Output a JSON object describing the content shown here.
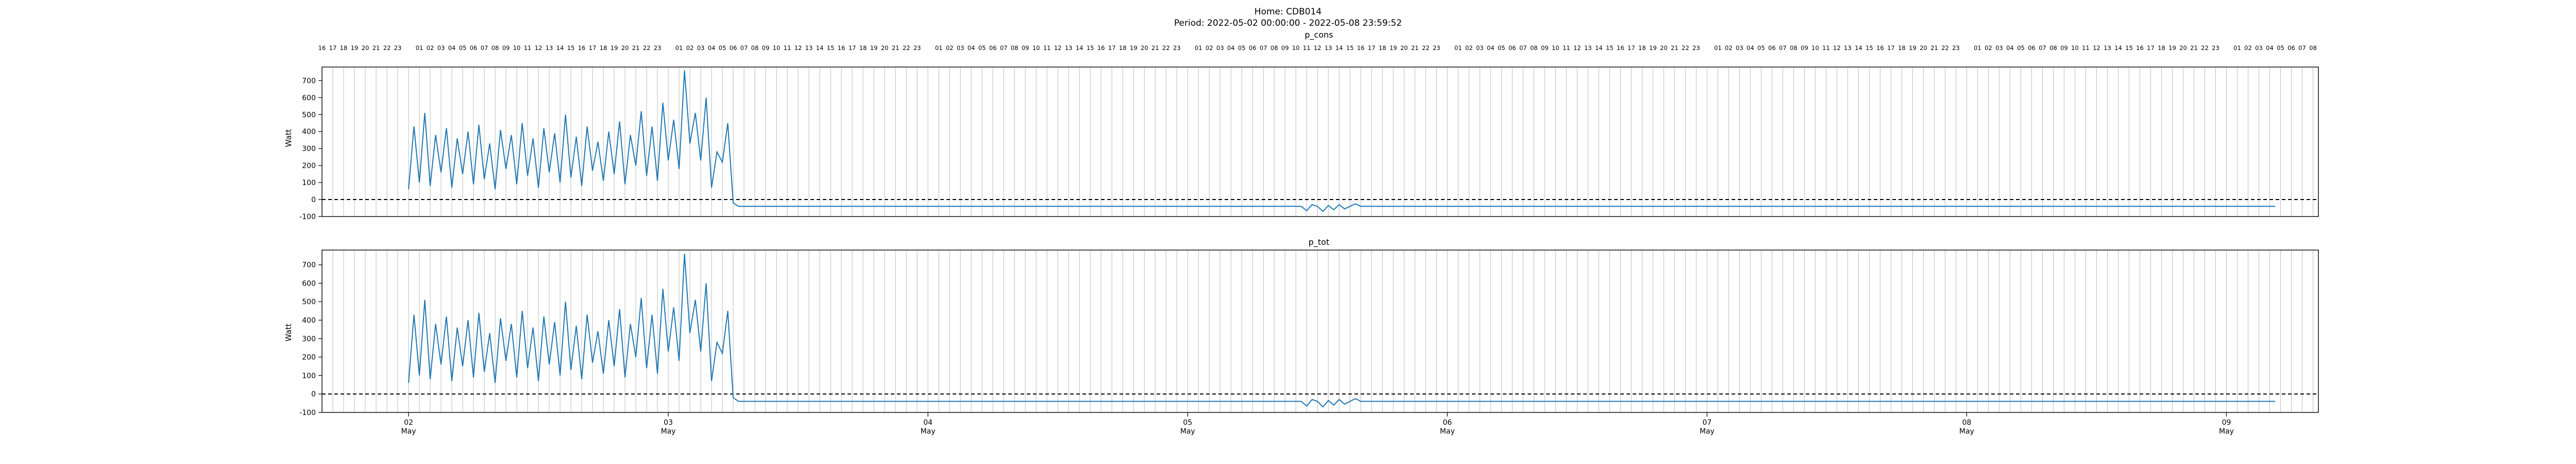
{
  "figure": {
    "title_line1": "Home: CDB014",
    "title_line2": "Period: 2022-05-02 00:00:00 - 2022-05-08 23:59:52"
  },
  "chart_data": [
    {
      "type": "line",
      "title": "p_cons",
      "ylabel": "Watt",
      "xlabel": "",
      "ylim": [
        -100,
        780
      ],
      "yticks": [
        -100,
        0,
        100,
        200,
        300,
        400,
        500,
        600,
        700
      ],
      "grid": "vertical hourly lines",
      "reference_line": {
        "y": 0,
        "style": "dashed",
        "color": "#000000"
      },
      "series": [
        {
          "color": "#1f77b4",
          "x_start": "2022-05-02 00:00",
          "x_step_hours": 0.5,
          "values": [
            60,
            430,
            100,
            510,
            80,
            380,
            160,
            420,
            70,
            360,
            150,
            400,
            90,
            440,
            120,
            330,
            60,
            410,
            180,
            380,
            90,
            450,
            140,
            360,
            70,
            420,
            160,
            390,
            100,
            500,
            130,
            370,
            80,
            430,
            170,
            340,
            110,
            400,
            150,
            460,
            90,
            380,
            200,
            520,
            140,
            430,
            110,
            570,
            230,
            470,
            180,
            760,
            330,
            510,
            230,
            600,
            70,
            280,
            220,
            450,
            -20,
            -40,
            -40,
            -40,
            -40,
            -40,
            -40,
            -40,
            -40,
            -40,
            -40,
            -40,
            -40,
            -40,
            -40,
            -40,
            -40,
            -40,
            -40,
            -40,
            -40,
            -40,
            -40,
            -40,
            -40,
            -40,
            -40,
            -40,
            -40,
            -40,
            -40,
            -40,
            -40,
            -40,
            -40,
            -40,
            -40,
            -40,
            -40,
            -40,
            -40,
            -40,
            -40,
            -40,
            -40,
            -40,
            -40,
            -40,
            -40,
            -40,
            -40,
            -40,
            -40,
            -40,
            -40,
            -40,
            -40,
            -40,
            -40,
            -40,
            -40,
            -40,
            -40,
            -40,
            -40,
            -40,
            -40,
            -40,
            -40,
            -40,
            -40,
            -40,
            -40,
            -40,
            -40,
            -40,
            -40,
            -40,
            -40,
            -40,
            -40,
            -40,
            -40,
            -40,
            -40,
            -40,
            -40,
            -40,
            -40,
            -40,
            -40,
            -40,
            -40,
            -40,
            -40,
            -40,
            -40,
            -40,
            -40,
            -40,
            -40,
            -40,
            -40,
            -40,
            -40,
            -40,
            -65,
            -30,
            -40,
            -70,
            -35,
            -60,
            -30,
            -55,
            -40,
            -25,
            -40,
            -40,
            -40,
            -40,
            -40,
            -40,
            -40,
            -40,
            -40,
            -40,
            -40,
            -40,
            -40,
            -40,
            -40,
            -40,
            -40,
            -40,
            -40,
            -40,
            -40,
            -40,
            -40,
            -40,
            -40,
            -40,
            -40,
            -40,
            -40,
            -40,
            -40,
            -40,
            -40,
            -40,
            -40,
            -40,
            -40,
            -40,
            -40,
            -40,
            -40,
            -40,
            -40,
            -40,
            -40,
            -40,
            -40,
            -40,
            -40,
            -40,
            -40,
            -40,
            -40,
            -40,
            -40,
            -40,
            -40,
            -40,
            -40,
            -40,
            -40,
            -40,
            -40,
            -40,
            -40,
            -40,
            -40,
            -40,
            -40,
            -40,
            -40,
            -40,
            -40,
            -40,
            -40,
            -40,
            -40,
            -40,
            -40,
            -40,
            -40,
            -40,
            -40,
            -40,
            -40,
            -40,
            -40,
            -40,
            -40,
            -40,
            -40,
            -40,
            -40,
            -40,
            -40,
            -40,
            -40,
            -40,
            -40,
            -40,
            -40,
            -40,
            -40,
            -40,
            -40,
            -40,
            -40,
            -40,
            -40,
            -40,
            -40,
            -40,
            -40,
            -40,
            -40,
            -40,
            -40,
            -40,
            -40,
            -40,
            -40,
            -40,
            -40,
            -40,
            -40,
            -40,
            -40,
            -40,
            -40,
            -40,
            -40,
            -40,
            -40,
            -40,
            -40,
            -40,
            -40,
            -40,
            -40,
            -40,
            -40,
            -40,
            -40,
            -40,
            -40,
            -40,
            -40,
            -40,
            -40,
            -40,
            -40,
            -40,
            -40,
            -40,
            -40,
            -40,
            -40,
            -40,
            -40,
            -40,
            -40,
            -40,
            -40,
            -40,
            -40,
            -40,
            -40,
            -40,
            -40,
            -40
          ]
        }
      ]
    },
    {
      "type": "line",
      "title": "p_tot",
      "ylabel": "Watt",
      "xlabel": "",
      "ylim": [
        -100,
        780
      ],
      "yticks": [
        -100,
        0,
        100,
        200,
        300,
        400,
        500,
        600,
        700
      ],
      "grid": "vertical hourly lines",
      "reference_line": {
        "y": 0,
        "style": "dashed",
        "color": "#000000"
      },
      "series": [
        {
          "color": "#1f77b4",
          "x_start": "2022-05-02 00:00",
          "x_step_hours": 0.5,
          "values": [
            60,
            430,
            100,
            510,
            80,
            380,
            160,
            420,
            70,
            360,
            150,
            400,
            90,
            440,
            120,
            330,
            60,
            410,
            180,
            380,
            90,
            450,
            140,
            360,
            70,
            420,
            160,
            390,
            100,
            500,
            130,
            370,
            80,
            430,
            170,
            340,
            110,
            400,
            150,
            460,
            90,
            380,
            200,
            520,
            140,
            430,
            110,
            570,
            230,
            470,
            180,
            760,
            330,
            510,
            230,
            600,
            70,
            280,
            220,
            450,
            -20,
            -40,
            -40,
            -40,
            -40,
            -40,
            -40,
            -40,
            -40,
            -40,
            -40,
            -40,
            -40,
            -40,
            -40,
            -40,
            -40,
            -40,
            -40,
            -40,
            -40,
            -40,
            -40,
            -40,
            -40,
            -40,
            -40,
            -40,
            -40,
            -40,
            -40,
            -40,
            -40,
            -40,
            -40,
            -40,
            -40,
            -40,
            -40,
            -40,
            -40,
            -40,
            -40,
            -40,
            -40,
            -40,
            -40,
            -40,
            -40,
            -40,
            -40,
            -40,
            -40,
            -40,
            -40,
            -40,
            -40,
            -40,
            -40,
            -40,
            -40,
            -40,
            -40,
            -40,
            -40,
            -40,
            -40,
            -40,
            -40,
            -40,
            -40,
            -40,
            -40,
            -40,
            -40,
            -40,
            -40,
            -40,
            -40,
            -40,
            -40,
            -40,
            -40,
            -40,
            -40,
            -40,
            -40,
            -40,
            -40,
            -40,
            -40,
            -40,
            -40,
            -40,
            -40,
            -40,
            -40,
            -40,
            -40,
            -40,
            -40,
            -40,
            -40,
            -40,
            -40,
            -40,
            -65,
            -30,
            -40,
            -70,
            -35,
            -60,
            -30,
            -55,
            -40,
            -25,
            -40,
            -40,
            -40,
            -40,
            -40,
            -40,
            -40,
            -40,
            -40,
            -40,
            -40,
            -40,
            -40,
            -40,
            -40,
            -40,
            -40,
            -40,
            -40,
            -40,
            -40,
            -40,
            -40,
            -40,
            -40,
            -40,
            -40,
            -40,
            -40,
            -40,
            -40,
            -40,
            -40,
            -40,
            -40,
            -40,
            -40,
            -40,
            -40,
            -40,
            -40,
            -40,
            -40,
            -40,
            -40,
            -40,
            -40,
            -40,
            -40,
            -40,
            -40,
            -40,
            -40,
            -40,
            -40,
            -40,
            -40,
            -40,
            -40,
            -40,
            -40,
            -40,
            -40,
            -40,
            -40,
            -40,
            -40,
            -40,
            -40,
            -40,
            -40,
            -40,
            -40,
            -40,
            -40,
            -40,
            -40,
            -40,
            -40,
            -40,
            -40,
            -40,
            -40,
            -40,
            -40,
            -40,
            -40,
            -40,
            -40,
            -40,
            -40,
            -40,
            -40,
            -40,
            -40,
            -40,
            -40,
            -40,
            -40,
            -40,
            -40,
            -40,
            -40,
            -40,
            -40,
            -40,
            -40,
            -40,
            -40,
            -40,
            -40,
            -40,
            -40,
            -40,
            -40,
            -40,
            -40,
            -40,
            -40,
            -40,
            -40,
            -40,
            -40,
            -40,
            -40,
            -40,
            -40,
            -40,
            -40,
            -40,
            -40,
            -40,
            -40,
            -40,
            -40,
            -40,
            -40,
            -40,
            -40,
            -40,
            -40,
            -40,
            -40,
            -40,
            -40,
            -40,
            -40,
            -40,
            -40,
            -40,
            -40,
            -40,
            -40,
            -40,
            -40,
            -40,
            -40,
            -40,
            -40,
            -40,
            -40,
            -40,
            -40,
            -40,
            -40,
            -40,
            -40,
            -40,
            -40,
            -40
          ]
        }
      ]
    }
  ],
  "x_axis": {
    "range": [
      "2022-05-01 16:00",
      "2022-05-09 08:30"
    ],
    "day_ticks": [
      {
        "date": "2022-05-02",
        "day": "02",
        "month": "May"
      },
      {
        "date": "2022-05-03",
        "day": "03",
        "month": "May"
      },
      {
        "date": "2022-05-04",
        "day": "04",
        "month": "May"
      },
      {
        "date": "2022-05-05",
        "day": "05",
        "month": "May"
      },
      {
        "date": "2022-05-06",
        "day": "06",
        "month": "May"
      },
      {
        "date": "2022-05-07",
        "day": "07",
        "month": "May"
      },
      {
        "date": "2022-05-08",
        "day": "08",
        "month": "May"
      },
      {
        "date": "2022-05-09",
        "day": "09",
        "month": "May"
      }
    ],
    "top_hour_labels": "16 17 18 19 20 21 22 23, 01–23 per day (midnight unlabeled), 01–08 on 09 May"
  }
}
